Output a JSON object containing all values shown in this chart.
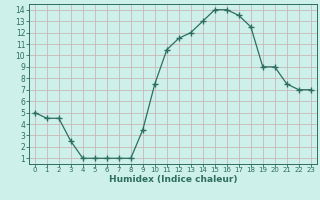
{
  "x": [
    0,
    1,
    2,
    3,
    4,
    5,
    6,
    7,
    8,
    9,
    10,
    11,
    12,
    13,
    14,
    15,
    16,
    17,
    18,
    19,
    20,
    21,
    22,
    23
  ],
  "y": [
    5.0,
    4.5,
    4.5,
    2.5,
    1.0,
    1.0,
    1.0,
    1.0,
    1.0,
    3.5,
    7.5,
    10.5,
    11.5,
    12.0,
    13.0,
    14.0,
    14.0,
    13.5,
    12.5,
    9.0,
    9.0,
    7.5,
    7.0,
    7.0
  ],
  "line_color": "#2d6e5e",
  "marker_color": "#2d6e5e",
  "bg_color": "#cef0eb",
  "grid_major_color": "#c8b8b8",
  "grid_minor_color": "#cef0eb",
  "xlabel": "Humidex (Indice chaleur)",
  "tick_color": "#2d6e5e",
  "xlim": [
    -0.5,
    23.5
  ],
  "ylim": [
    0.5,
    14.5
  ],
  "yticks": [
    1,
    2,
    3,
    4,
    5,
    6,
    7,
    8,
    9,
    10,
    11,
    12,
    13,
    14
  ],
  "xticks": [
    0,
    1,
    2,
    3,
    4,
    5,
    6,
    7,
    8,
    9,
    10,
    11,
    12,
    13,
    14,
    15,
    16,
    17,
    18,
    19,
    20,
    21,
    22,
    23
  ],
  "spine_color": "#2d6e5e",
  "font_color": "#2d6e5e"
}
